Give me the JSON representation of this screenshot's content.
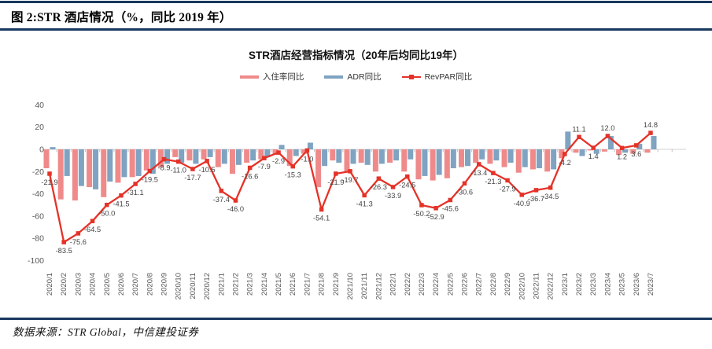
{
  "header": {
    "title": "图 2:STR 酒店情况（%，同比 2019 年）"
  },
  "footer": {
    "source": "数据来源：STR Global，中信建投证券"
  },
  "colors": {
    "rule": "#17375E",
    "occupancy_bar": "#EF8A8B",
    "adr_bar": "#7FA3C1",
    "revpar_line": "#E53228",
    "axis_line": "#D0D0D0",
    "tick": "#C0C0C0",
    "axis_label": "#595959",
    "data_label": "#444444"
  },
  "chart_data": {
    "type": "bar+line",
    "title": "STR酒店经营指标情况（20年后均同比19年）",
    "legend_position": "top",
    "grid": false,
    "ylim": [
      -100,
      40
    ],
    "yticks": [
      40,
      20,
      0,
      -20,
      -40,
      -60,
      -80,
      -100
    ],
    "legend": [
      {
        "label": "入住率同比",
        "color": "#EF8A8B",
        "kind": "bar"
      },
      {
        "label": "ADR同比",
        "color": "#7FA3C1",
        "kind": "bar"
      },
      {
        "label": "RevPAR同比",
        "color": "#E53228",
        "kind": "line"
      }
    ],
    "categories": [
      "2020/1",
      "2020/2",
      "2020/3",
      "2020/4",
      "2020/5",
      "2020/6",
      "2020/7",
      "2020/8",
      "2020/9",
      "2020/10",
      "2020/11",
      "2020/12",
      "2021/1",
      "2021/2",
      "2021/3",
      "2021/4",
      "2021/5",
      "2021/6",
      "2021/7",
      "2021/8",
      "2021/9",
      "2021/10",
      "2021/11",
      "2021/12",
      "2022/1",
      "2022/2",
      "2022/3",
      "2022/4",
      "2022/5",
      "2022/6",
      "2022/7",
      "2022/8",
      "2022/9",
      "2022/10",
      "2022/11",
      "2022/12",
      "2023/1",
      "2023/2",
      "2023/3",
      "2023/4",
      "2023/5",
      "2023/6",
      "2023/7"
    ],
    "series": [
      {
        "name": "入住率同比",
        "type": "bar",
        "color": "#EF8A8B",
        "values": [
          -17,
          -45,
          -46,
          -34,
          -43,
          -30,
          -25,
          -19,
          -16,
          -7,
          -10,
          -9,
          -16,
          -22,
          -12,
          -9,
          -5,
          -15,
          -4,
          -34,
          -10,
          -21,
          -12,
          -20,
          -12,
          -20,
          -27,
          -28,
          -26,
          -16,
          -12,
          -13,
          -16,
          -21,
          -18,
          -20,
          -8,
          -3,
          -1,
          -2,
          -5,
          -4,
          -3
        ]
      },
      {
        "name": "ADR同比",
        "type": "bar",
        "color": "#7FA3C1",
        "values": [
          2,
          -24,
          -33,
          -36,
          -29,
          -25,
          -24,
          -22,
          -13,
          -12,
          -13,
          -7,
          -13,
          -14,
          -10,
          -7,
          4,
          -6,
          6,
          -15,
          -12,
          -13,
          -14,
          -13,
          -10,
          -9,
          -24,
          -23,
          -17,
          -15,
          -9,
          -10,
          -12,
          -16,
          -17,
          -18,
          16,
          -6,
          -4,
          12,
          -3,
          5,
          12
        ]
      },
      {
        "name": "RevPAR同比",
        "type": "line",
        "color": "#E53228",
        "labeled": true,
        "values": [
          -21.9,
          -83.5,
          -75.6,
          -64.5,
          -50.0,
          -41.5,
          -31.1,
          -19.5,
          -8.9,
          -11.0,
          -17.7,
          -10.5,
          -37.4,
          -46.0,
          -16.6,
          -7.9,
          -2.9,
          -15.3,
          -1.0,
          -54.1,
          -21.9,
          -19.7,
          -41.3,
          -26.3,
          -33.9,
          -24.5,
          -50.2,
          -52.9,
          -45.6,
          -30.6,
          -13.4,
          -21.3,
          -27.9,
          -40.9,
          -36.7,
          -34.5,
          -4.2,
          11.1,
          1.4,
          12.0,
          1.2,
          3.6,
          14.8
        ]
      }
    ]
  }
}
